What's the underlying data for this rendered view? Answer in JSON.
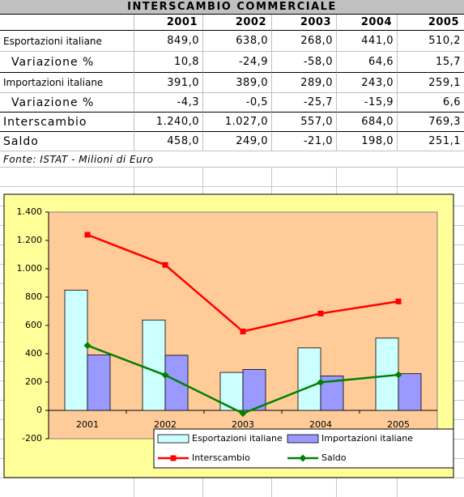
{
  "table": {
    "title": "INTERSCAMBIO COMMERCIALE",
    "header": [
      "2001",
      "2002",
      "2003",
      "2004",
      "2005"
    ],
    "rows": [
      [
        "Esportazioni italiane",
        "849,0",
        "638,0",
        "268,0",
        "441,0",
        "510,2"
      ],
      [
        "Variazione %",
        "10,8",
        "-24,9",
        "-58,0",
        "64,6",
        "15,7"
      ],
      [
        "Importazioni italiane",
        "391,0",
        "389,0",
        "289,0",
        "243,0",
        "259,1"
      ],
      [
        "Variazione %",
        "-4,3",
        "-0,5",
        "-25,7",
        "-15,9",
        "6,6"
      ],
      [
        "Interscambio",
        "1.240,0",
        "1.027,0",
        "557,0",
        "684,0",
        "769,3"
      ],
      [
        "Saldo",
        "458,0",
        "249,0",
        "-21,0",
        "198,0",
        "251,1"
      ]
    ],
    "note": "Fonte: ISTAT - Milioni di Euro"
  },
  "chart_data": {
    "type": "bar",
    "categories": [
      "2001",
      "2002",
      "2003",
      "2004",
      "2005"
    ],
    "series": [
      {
        "name": "Esportazioni italiane",
        "type": "bar",
        "color": "#ccffff",
        "values": [
          849,
          638,
          268,
          441,
          510.2
        ]
      },
      {
        "name": "Importazioni italiane",
        "type": "bar",
        "color": "#9999ff",
        "values": [
          391,
          389,
          289,
          243,
          259.1
        ]
      },
      {
        "name": "Interscambio",
        "type": "line",
        "color": "#ff0000",
        "marker": "square",
        "values": [
          1240,
          1027,
          557,
          684,
          769.3
        ]
      },
      {
        "name": "Saldo",
        "type": "line",
        "color": "#008000",
        "marker": "diamond",
        "values": [
          458,
          249,
          -21,
          198,
          251.1
        ]
      }
    ],
    "ylim": [
      -200,
      1400
    ],
    "yticks": [
      -200,
      0,
      200,
      400,
      600,
      800,
      {
        "value": 1000,
        "label": "1.000"
      },
      {
        "value": 1200,
        "label": "1.200"
      },
      {
        "value": 1400,
        "label": "1.400"
      }
    ],
    "grid": false
  }
}
